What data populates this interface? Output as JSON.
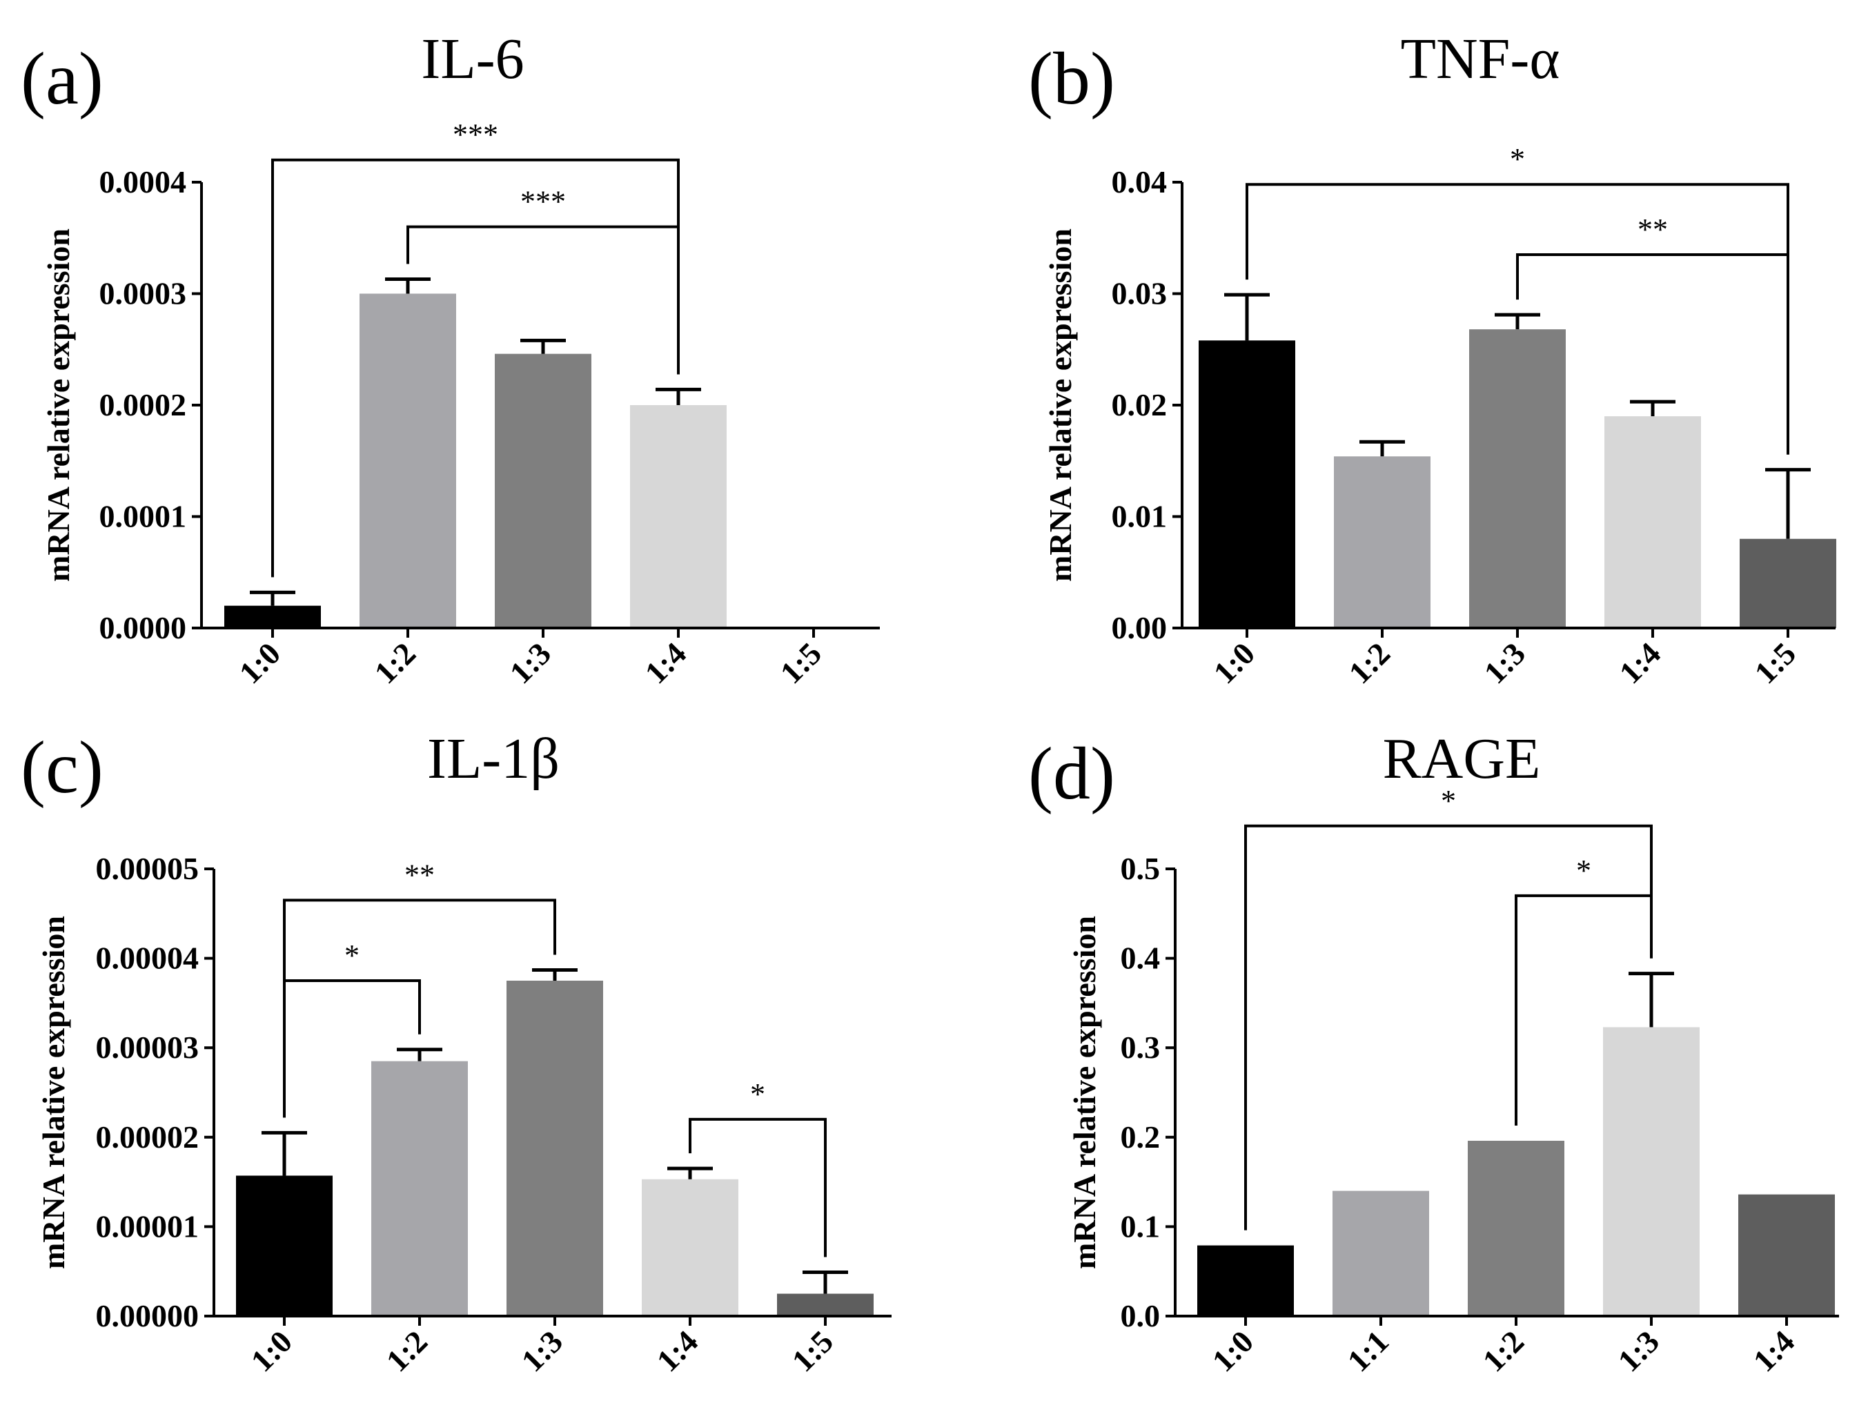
{
  "chart_data": [
    {
      "type": "bar",
      "panel_label": "(a)",
      "title": "IL-6",
      "ylabel": "mRNA relative expression",
      "xlabel": "",
      "categories": [
        "1:0",
        "1:2",
        "1:3",
        "1:4",
        "1:5"
      ],
      "values": [
        2e-05,
        0.0003,
        0.000246,
        0.0002,
        8e-07
      ],
      "errors": [
        1.2e-05,
        1.3e-05,
        1.2e-05,
        1.4e-05,
        0
      ],
      "bar_colors": [
        "#000000",
        "#a6a6aa",
        "#7f7f7f",
        "#d7d7d7",
        "#5e5e5e"
      ],
      "ylim": [
        0,
        0.0004
      ],
      "yticks": [
        0,
        0.0001,
        0.0002,
        0.0003,
        0.0004
      ],
      "ytick_labels": [
        "0.0000",
        "0.0001",
        "0.0002",
        "0.0003",
        "0.0004"
      ],
      "significance": [
        {
          "from": 0,
          "to": 3,
          "y": 0.00042,
          "label": "***"
        },
        {
          "from": 1,
          "to": 3,
          "y": 0.00036,
          "label": "***"
        }
      ]
    },
    {
      "type": "bar",
      "panel_label": "(b)",
      "title": "TNF-α",
      "ylabel": "mRNA relative expression",
      "xlabel": "",
      "categories": [
        "1:0",
        "1:2",
        "1:3",
        "1:4",
        "1:5"
      ],
      "values": [
        0.0258,
        0.0154,
        0.0268,
        0.019,
        0.008
      ],
      "errors": [
        0.0041,
        0.0013,
        0.0013,
        0.0013,
        0.0062
      ],
      "bar_colors": [
        "#000000",
        "#a6a6aa",
        "#7f7f7f",
        "#d7d7d7",
        "#5e5e5e"
      ],
      "ylim": [
        0,
        0.04
      ],
      "yticks": [
        0,
        0.01,
        0.02,
        0.03,
        0.04
      ],
      "ytick_labels": [
        "0.00",
        "0.01",
        "0.02",
        "0.03",
        "0.04"
      ],
      "significance": [
        {
          "from": 0,
          "to": 4,
          "y": 0.0398,
          "label": "*"
        },
        {
          "from": 2,
          "to": 4,
          "y": 0.0335,
          "label": "**"
        }
      ]
    },
    {
      "type": "bar",
      "panel_label": "(c)",
      "title": "IL-1β",
      "ylabel": "mRNA relative expression",
      "xlabel": "",
      "categories": [
        "1:0",
        "1:2",
        "1:3",
        "1:4",
        "1:5"
      ],
      "values": [
        1.57e-05,
        2.85e-05,
        3.75e-05,
        1.53e-05,
        2.5e-06
      ],
      "errors": [
        4.8e-06,
        1.3e-06,
        1.2e-06,
        1.2e-06,
        2.4e-06
      ],
      "bar_colors": [
        "#000000",
        "#a6a6aa",
        "#7f7f7f",
        "#d7d7d7",
        "#5e5e5e"
      ],
      "ylim": [
        0,
        5e-05
      ],
      "yticks": [
        0,
        1e-05,
        2e-05,
        3e-05,
        4e-05,
        5e-05
      ],
      "ytick_labels": [
        "0.00000",
        "0.00001",
        "0.00002",
        "0.00003",
        "0.00004",
        "0.00005"
      ],
      "significance": [
        {
          "from": 0,
          "to": 2,
          "y": 4.65e-05,
          "label": "**"
        },
        {
          "from": 0,
          "to": 1,
          "y": 3.75e-05,
          "label": "*"
        },
        {
          "from": 3,
          "to": 4,
          "y": 2.2e-05,
          "label": "*"
        }
      ]
    },
    {
      "type": "bar",
      "panel_label": "(d)",
      "title": "RAGE",
      "ylabel": "mRNA relative expression",
      "xlabel": "",
      "categories": [
        "1:0",
        "1:1",
        "1:2",
        "1:3",
        "1:4"
      ],
      "values": [
        0.079,
        0.14,
        0.196,
        0.323,
        0.136
      ],
      "errors": [
        0,
        0,
        0,
        0.06,
        0
      ],
      "bar_colors": [
        "#000000",
        "#a6a6aa",
        "#7f7f7f",
        "#d7d7d7",
        "#5e5e5e"
      ],
      "ylim": [
        0,
        0.5
      ],
      "yticks": [
        0,
        0.1,
        0.2,
        0.3,
        0.4,
        0.5
      ],
      "ytick_labels": [
        "0.0",
        "0.1",
        "0.2",
        "0.3",
        "0.4",
        "0.5"
      ],
      "significance": [
        {
          "from": 0,
          "to": 3,
          "y": 0.548,
          "label": "*"
        },
        {
          "from": 2,
          "to": 3,
          "y": 0.47,
          "label": "*"
        }
      ]
    }
  ]
}
